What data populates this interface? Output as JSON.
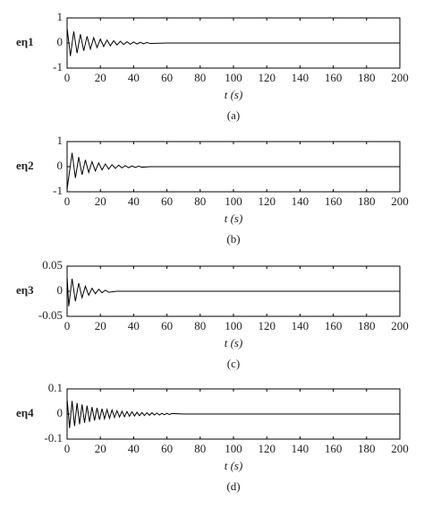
{
  "chart_data": [
    {
      "type": "line",
      "ylabel": "eη1",
      "xlabel": "t (s)",
      "caption": "(a)",
      "color": "#000000",
      "xlim": [
        0,
        200
      ],
      "xticks": [
        0,
        20,
        40,
        60,
        80,
        100,
        120,
        140,
        160,
        180,
        200
      ],
      "ylim": [
        -1,
        1
      ],
      "yticks": [
        1,
        0,
        -1
      ],
      "x": [
        0,
        2,
        4,
        6,
        8,
        10,
        12,
        14,
        16,
        18,
        20,
        22,
        24,
        26,
        28,
        30,
        32,
        34,
        36,
        38,
        40,
        42,
        44,
        46,
        48,
        50,
        60,
        200
      ],
      "values": [
        0.6,
        -0.52,
        0.46,
        -0.4,
        0.35,
        -0.31,
        0.27,
        -0.24,
        0.21,
        -0.18,
        0.16,
        -0.14,
        0.12,
        -0.11,
        0.09,
        -0.08,
        0.07,
        -0.06,
        0.05,
        -0.05,
        0.04,
        -0.04,
        0.03,
        -0.03,
        0.02,
        -0.02,
        0,
        0
      ]
    },
    {
      "type": "line",
      "ylabel": "eη2",
      "xlabel": "t (s)",
      "caption": "(b)",
      "color": "#000000",
      "xlim": [
        0,
        200
      ],
      "xticks": [
        0,
        20,
        40,
        60,
        80,
        100,
        120,
        140,
        160,
        180,
        200
      ],
      "ylim": [
        -1,
        1
      ],
      "yticks": [
        1,
        0,
        -1
      ],
      "x": [
        0,
        3,
        5,
        7,
        9,
        11,
        13,
        15,
        17,
        19,
        21,
        23,
        25,
        27,
        29,
        31,
        33,
        35,
        37,
        39,
        41,
        43,
        45,
        50,
        200
      ],
      "values": [
        -0.9,
        0.55,
        -0.45,
        0.38,
        -0.32,
        0.27,
        -0.23,
        0.2,
        -0.17,
        0.15,
        -0.13,
        0.11,
        -0.1,
        0.08,
        -0.07,
        0.06,
        -0.05,
        0.04,
        -0.04,
        0.03,
        -0.03,
        0.02,
        -0.02,
        0,
        0
      ]
    },
    {
      "type": "line",
      "ylabel": "eη3",
      "xlabel": "t (s)",
      "caption": "(c)",
      "color": "#000000",
      "xlim": [
        0,
        200
      ],
      "xticks": [
        0,
        20,
        40,
        60,
        80,
        100,
        120,
        140,
        160,
        180,
        200
      ],
      "ylim": [
        -0.05,
        0.05
      ],
      "yticks": [
        0.05,
        0,
        -0.05
      ],
      "x": [
        0,
        1,
        3,
        5,
        7,
        9,
        11,
        13,
        15,
        17,
        19,
        21,
        23,
        25,
        30,
        200
      ],
      "values": [
        0.03,
        -0.03,
        0.025,
        -0.02,
        0.016,
        -0.013,
        0.01,
        -0.008,
        0.006,
        -0.005,
        0.004,
        -0.003,
        0.002,
        -0.002,
        0,
        0
      ]
    },
    {
      "type": "line",
      "ylabel": "eη4",
      "xlabel": "t (s)",
      "caption": "(d)",
      "color": "#000000",
      "xlim": [
        0,
        200
      ],
      "xticks": [
        0,
        20,
        40,
        60,
        80,
        100,
        120,
        140,
        160,
        180,
        200
      ],
      "ylim": [
        -0.1,
        0.1
      ],
      "yticks": [
        0.1,
        0,
        -0.1
      ],
      "x": [
        0,
        1.5,
        3,
        4.5,
        6,
        7.5,
        9,
        10.5,
        12,
        13.5,
        15,
        16.5,
        18,
        19.5,
        21,
        22.5,
        24,
        25.5,
        27,
        28.5,
        30,
        31.5,
        33,
        34.5,
        36,
        37.5,
        39,
        40.5,
        42,
        43.5,
        45,
        46.5,
        48,
        49.5,
        51,
        52.5,
        54,
        55.5,
        57,
        58.5,
        60,
        61.5,
        63,
        70,
        200
      ],
      "values": [
        0.06,
        -0.056,
        0.052,
        -0.048,
        0.044,
        -0.041,
        0.038,
        -0.035,
        0.033,
        -0.031,
        0.028,
        -0.026,
        0.024,
        -0.023,
        0.021,
        -0.019,
        0.018,
        -0.017,
        0.016,
        -0.014,
        0.013,
        -0.012,
        0.011,
        -0.011,
        0.01,
        -0.009,
        0.009,
        -0.008,
        0.007,
        -0.007,
        0.006,
        -0.006,
        0.005,
        -0.005,
        0.005,
        -0.004,
        0.004,
        -0.004,
        0.003,
        -0.003,
        0.003,
        -0.002,
        0.002,
        0,
        0
      ]
    }
  ]
}
